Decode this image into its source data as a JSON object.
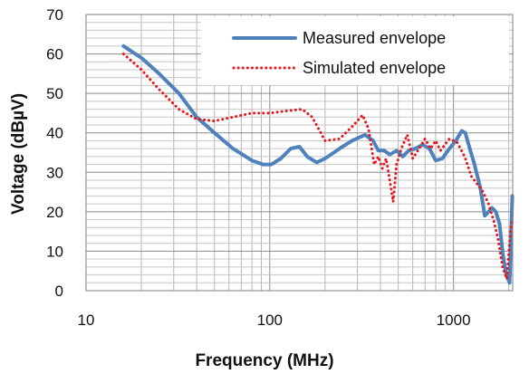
{
  "chart_data": {
    "type": "line",
    "xlabel": "Frequency (MHz)",
    "ylabel": "Voltage (dBµV)",
    "x_scale": "log",
    "xlim": [
      10,
      2100
    ],
    "ylim": [
      0,
      70
    ],
    "x_ticks": [
      10,
      100,
      1000
    ],
    "x_tick_labels": [
      "10",
      "100",
      "1000"
    ],
    "y_ticks": [
      0,
      10,
      20,
      30,
      40,
      50,
      60,
      70
    ],
    "y_tick_labels": [
      "0",
      "10",
      "20",
      "30",
      "40",
      "50",
      "60",
      "70"
    ],
    "grid": true,
    "legend_position": "top-right",
    "series": [
      {
        "name": "Measured envelope",
        "color": "#4f81bd",
        "style": "solid",
        "x": [
          16,
          20,
          25,
          32,
          40,
          50,
          63,
          80,
          92,
          102,
          115,
          130,
          145,
          160,
          180,
          200,
          240,
          280,
          330,
          365,
          390,
          420,
          450,
          490,
          530,
          570,
          620,
          680,
          740,
          800,
          870,
          950,
          1030,
          1110,
          1160,
          1210,
          1300,
          1400,
          1480,
          1550,
          1620,
          1700,
          1780,
          1860,
          1940,
          2020,
          2090
        ],
        "y": [
          62,
          59,
          55,
          50,
          44,
          40,
          36,
          33,
          32,
          32,
          33.5,
          36,
          36.5,
          34,
          32.5,
          33.5,
          36,
          38,
          39.5,
          38,
          35.5,
          35.5,
          34.5,
          35.5,
          34,
          35.5,
          36,
          37,
          36,
          33,
          33.5,
          36,
          38,
          40.5,
          40,
          37,
          32,
          26,
          19,
          20,
          21,
          20,
          17,
          9,
          4,
          2,
          24
        ]
      },
      {
        "name": "Simulated envelope",
        "color": "#e8151b",
        "style": "dotted",
        "x": [
          16,
          20,
          25,
          32,
          40,
          50,
          63,
          80,
          100,
          120,
          150,
          170,
          200,
          240,
          280,
          320,
          345,
          370,
          390,
          410,
          430,
          450,
          470,
          490,
          520,
          560,
          600,
          650,
          700,
          750,
          800,
          850,
          950,
          1050,
          1150,
          1250,
          1350,
          1450,
          1550,
          1650,
          1750,
          1850,
          1950,
          2050,
          2100
        ],
        "y": [
          60,
          56,
          51,
          46,
          43.5,
          43,
          44,
          45,
          45,
          45.5,
          46,
          44,
          38,
          38.5,
          41.5,
          44.5,
          41,
          32,
          34,
          31,
          33.5,
          28,
          22.5,
          32,
          36,
          39.5,
          33.5,
          36,
          38.5,
          36,
          38,
          35.5,
          38.5,
          37.5,
          34,
          29,
          27,
          25,
          22,
          18,
          13,
          6,
          3,
          16,
          18
        ]
      }
    ]
  }
}
